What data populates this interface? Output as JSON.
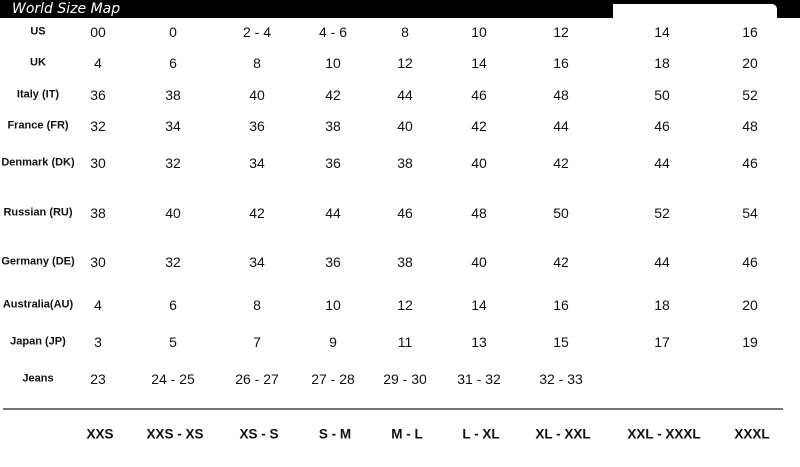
{
  "title": "World Size Map",
  "rows": [
    {
      "label": "US",
      "values": [
        "00",
        "0",
        "2 - 4",
        "4 - 6",
        "8",
        "10",
        "12",
        "14",
        "16"
      ]
    },
    {
      "label": "UK",
      "values": [
        "4",
        "6",
        "8",
        "10",
        "12",
        "14",
        "16",
        "18",
        "20"
      ]
    },
    {
      "label": "Italy (IT)",
      "values": [
        "36",
        "38",
        "40",
        "42",
        "44",
        "46",
        "48",
        "50",
        "52"
      ]
    },
    {
      "label": "France (FR)",
      "values": [
        "32",
        "34",
        "36",
        "38",
        "40",
        "42",
        "44",
        "46",
        "48"
      ]
    },
    {
      "label": "Denmark (DK)",
      "values": [
        "30",
        "32",
        "34",
        "36",
        "38",
        "40",
        "42",
        "44",
        "46"
      ]
    },
    {
      "label": "Russian (RU)",
      "values": [
        "38",
        "40",
        "42",
        "44",
        "46",
        "48",
        "50",
        "52",
        "54"
      ]
    },
    {
      "label": "Germany (DE)",
      "values": [
        "30",
        "32",
        "34",
        "36",
        "38",
        "40",
        "42",
        "44",
        "46"
      ]
    },
    {
      "label": "Australia(AU)",
      "values": [
        "4",
        "6",
        "8",
        "10",
        "12",
        "14",
        "16",
        "18",
        "20"
      ]
    },
    {
      "label": "Japan (JP)",
      "values": [
        "3",
        "5",
        "7",
        "9",
        "11",
        "13",
        "15",
        "17",
        "19"
      ]
    },
    {
      "label": "Jeans",
      "values": [
        "23",
        "24 - 25",
        "26 - 27",
        "27 - 28",
        "29 - 30",
        "31 - 32",
        "32 - 33",
        "",
        ""
      ]
    }
  ],
  "sizes": [
    "XXS",
    "XXS - XS",
    "XS - S",
    "S - M",
    "M - L",
    "L - XL",
    "XL - XXL",
    "XXL - XXXL",
    "XXXL"
  ]
}
